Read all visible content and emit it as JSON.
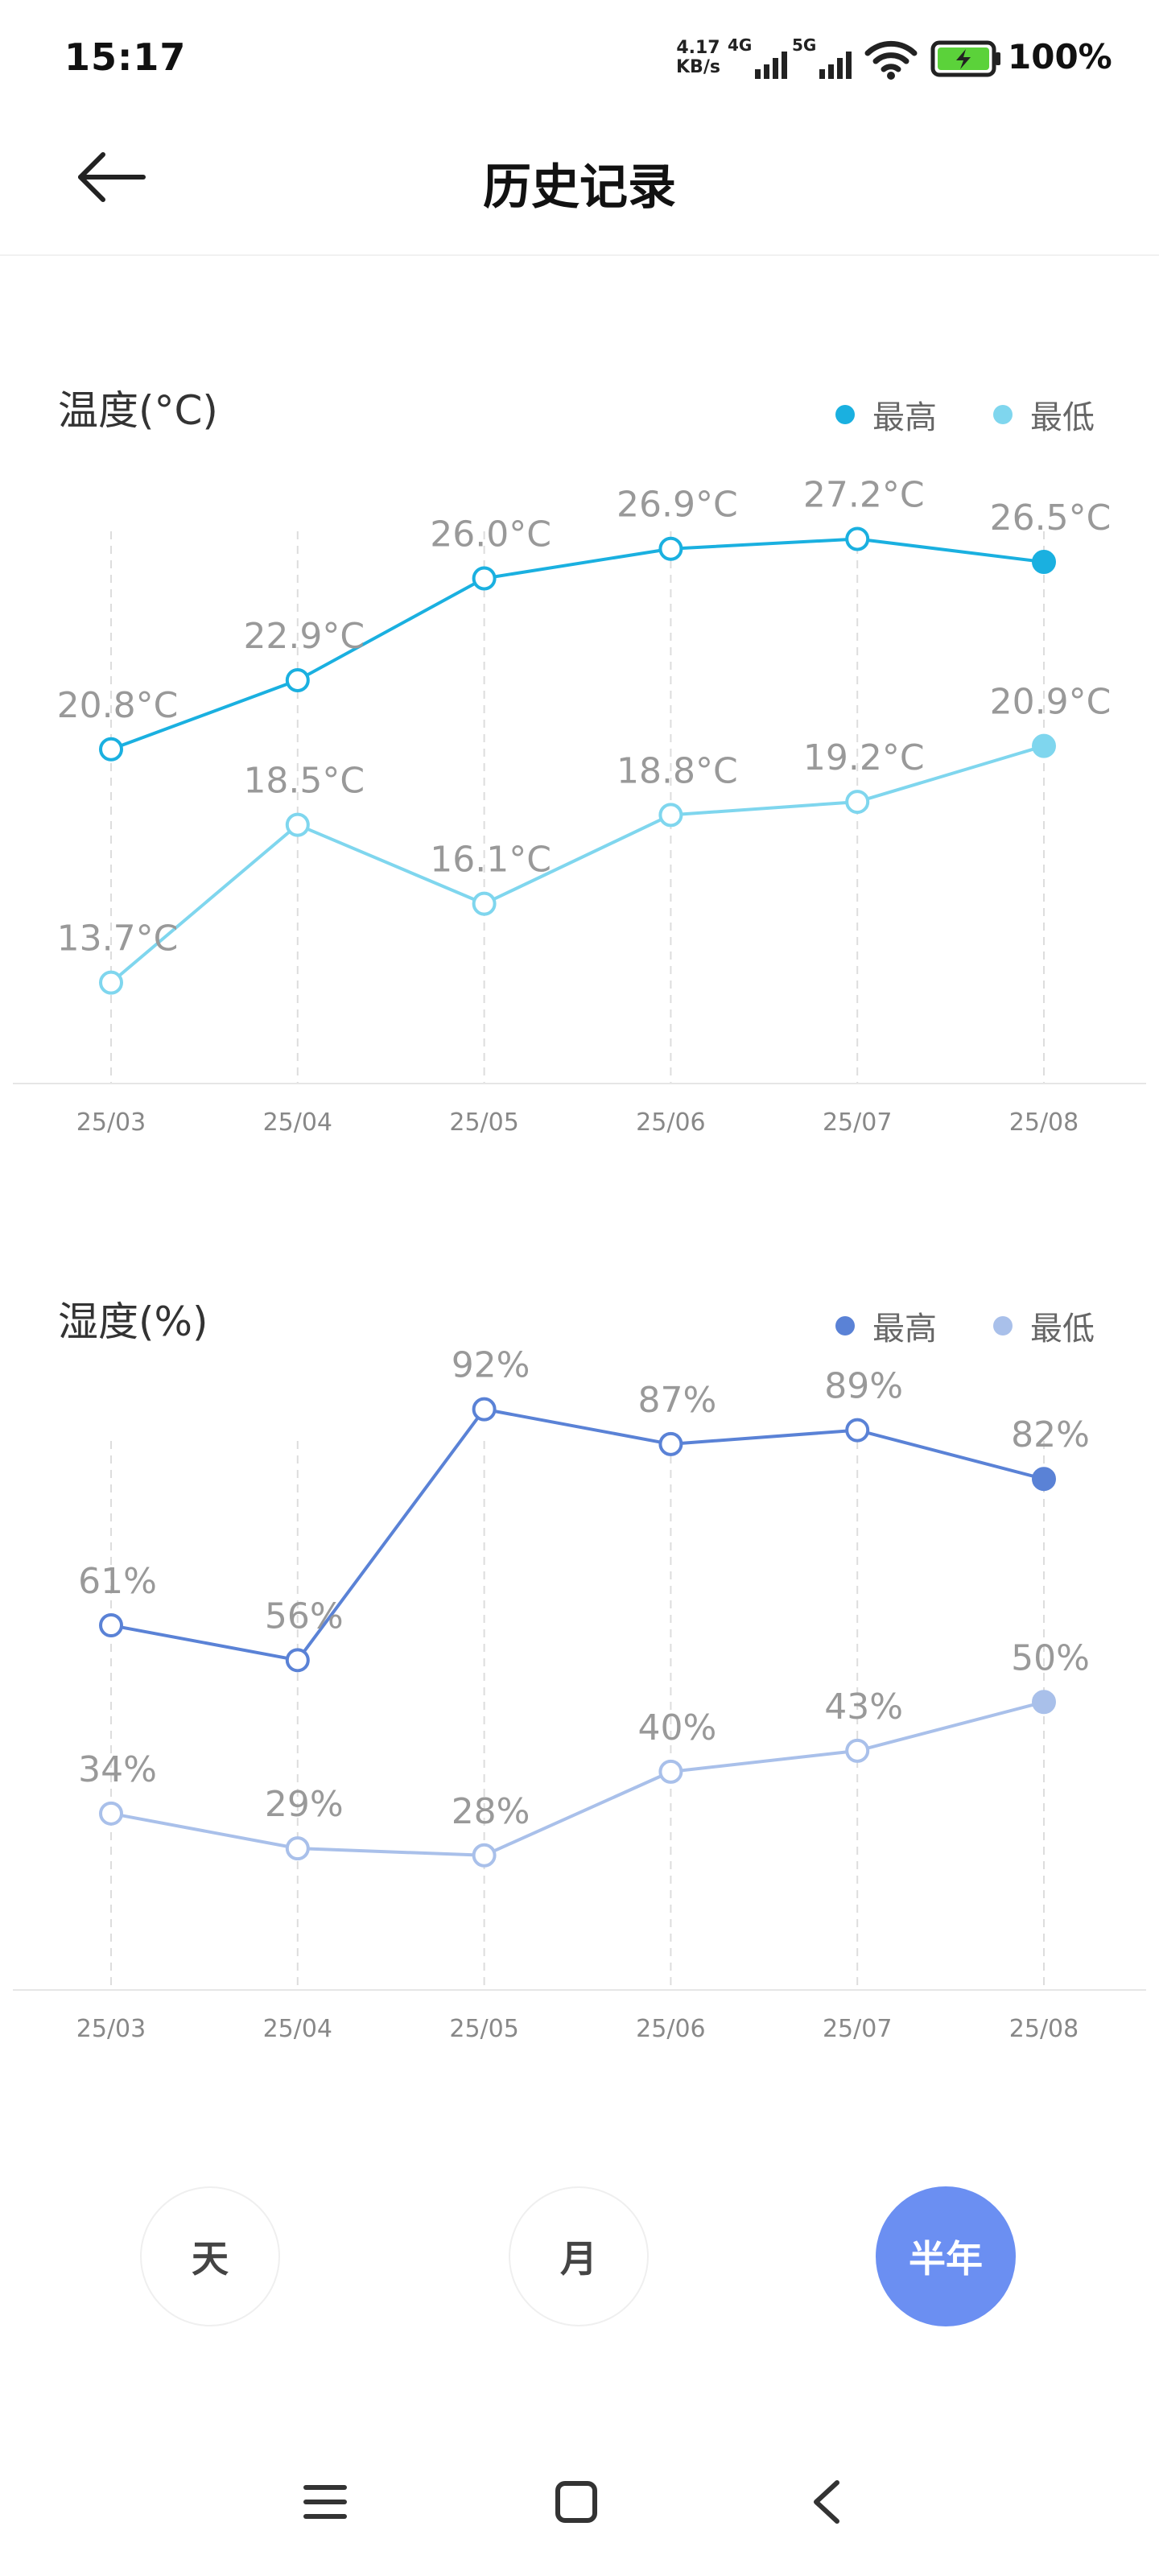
{
  "status_bar": {
    "time": "15:17",
    "speed_value": "4.17",
    "speed_unit": "KB/s",
    "sim1": "4G",
    "sim2": "5G",
    "battery": "100%",
    "icons": [
      "signal-4g-icon",
      "signal-5g-icon",
      "wifi-icon",
      "battery-charging-icon"
    ]
  },
  "header": {
    "title": "历史记录",
    "back_icon": "arrow-left-icon"
  },
  "temperature": {
    "title": "温度(°C)",
    "legend_high": "最高",
    "legend_low": "最低",
    "colors": {
      "high": "#1ab0e0",
      "low": "#7fd6ee"
    }
  },
  "humidity": {
    "title": "湿度(%)",
    "legend_high": "最高",
    "legend_low": "最低",
    "colors": {
      "high": "#5a82d6",
      "low": "#a9c0ea"
    }
  },
  "chart_data": [
    {
      "type": "line",
      "title": "温度(°C)",
      "categories": [
        "25/03",
        "25/04",
        "25/05",
        "25/06",
        "25/07",
        "25/08"
      ],
      "series": [
        {
          "name": "最高",
          "values": [
            20.8,
            22.9,
            26.0,
            26.9,
            27.2,
            26.5
          ],
          "labels": [
            "20.8°C",
            "22.9°C",
            "26.0°C",
            "26.9°C",
            "27.2°C",
            "26.5°C"
          ]
        },
        {
          "name": "最低",
          "values": [
            13.7,
            18.5,
            16.1,
            18.8,
            19.2,
            20.9
          ],
          "labels": [
            "13.7°C",
            "18.5°C",
            "16.1°C",
            "18.8°C",
            "19.2°C",
            "20.9°C"
          ]
        }
      ],
      "ylim": [
        12,
        29
      ],
      "legend": "top-right",
      "grid": "vertical-dashed"
    },
    {
      "type": "line",
      "title": "湿度(%)",
      "categories": [
        "25/03",
        "25/04",
        "25/05",
        "25/06",
        "25/07",
        "25/08"
      ],
      "series": [
        {
          "name": "最高",
          "values": [
            61,
            56,
            92,
            87,
            89,
            82
          ],
          "labels": [
            "61%",
            "56%",
            "92%",
            "87%",
            "89%",
            "82%"
          ]
        },
        {
          "name": "最低",
          "values": [
            34,
            29,
            28,
            40,
            43,
            50
          ],
          "labels": [
            "34%",
            "29%",
            "28%",
            "40%",
            "43%",
            "50%"
          ]
        }
      ],
      "ylim": [
        14,
        99
      ],
      "legend": "top-right",
      "grid": "vertical-dashed"
    }
  ],
  "period_buttons": [
    {
      "label": "天",
      "active": false
    },
    {
      "label": "月",
      "active": false
    },
    {
      "label": "半年",
      "active": true
    }
  ],
  "nav_bar": {
    "icons": [
      "menu-icon",
      "home-icon",
      "back-icon"
    ]
  }
}
